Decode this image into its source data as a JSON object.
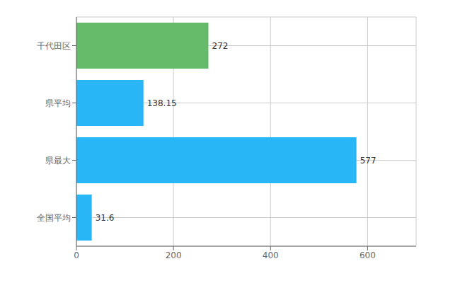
{
  "chart_data": {
    "type": "bar",
    "orientation": "horizontal",
    "categories": [
      "千代田区",
      "県平均",
      "県最大",
      "全国平均"
    ],
    "values": [
      272,
      138.15,
      577,
      31.6
    ],
    "colors": [
      "#66bb6a",
      "#29b6f6",
      "#29b6f6",
      "#29b6f6"
    ],
    "xlim": [
      0,
      700
    ],
    "xticks": [
      0,
      200,
      400,
      600
    ],
    "grid": true,
    "data_labels": true
  }
}
